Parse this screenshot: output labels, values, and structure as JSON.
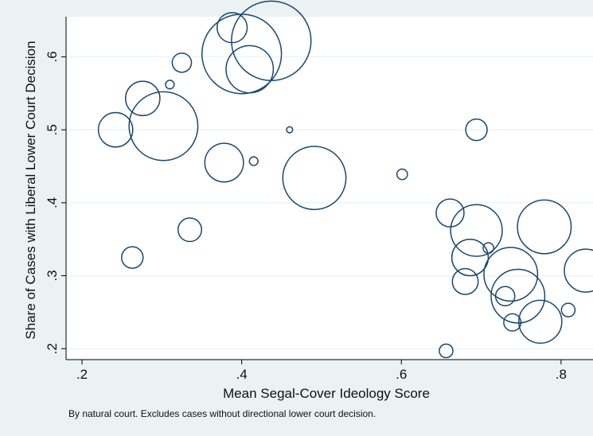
{
  "chart_data": {
    "type": "scatter",
    "title": "",
    "xlabel": "Mean Segal-Cover Ideology Score",
    "ylabel": "Share of Cases with Liberal Lower Court Decision",
    "note": "By natural court. Excludes cases without directional lower court decision.",
    "xlim": [
      0.18,
      0.84
    ],
    "ylim": [
      0.185,
      0.655
    ],
    "x_ticks": [
      0.2,
      0.4,
      0.6,
      0.8
    ],
    "x_tick_labels": [
      ".2",
      ".4",
      ".6",
      ".8"
    ],
    "y_ticks": [
      0.2,
      0.3,
      0.4,
      0.5,
      0.6
    ],
    "y_tick_labels": [
      ".2",
      ".3",
      ".4",
      ".5",
      ".6"
    ],
    "grid": true,
    "marker": "hollow circle, size proportional to weight",
    "colors": {
      "marker": "#1a476f",
      "grid": "#eaf2f3",
      "plot_bg": "#ffffff",
      "page_bg": "#eaf2f3",
      "axis": "#000000"
    },
    "points": [
      {
        "x": 0.242,
        "y": 0.5,
        "w": 64
      },
      {
        "x": 0.263,
        "y": 0.325,
        "w": 25
      },
      {
        "x": 0.276,
        "y": 0.543,
        "w": 64
      },
      {
        "x": 0.302,
        "y": 0.505,
        "w": 256
      },
      {
        "x": 0.31,
        "y": 0.562,
        "w": 4
      },
      {
        "x": 0.325,
        "y": 0.592,
        "w": 20
      },
      {
        "x": 0.335,
        "y": 0.363,
        "w": 30
      },
      {
        "x": 0.378,
        "y": 0.455,
        "w": 81
      },
      {
        "x": 0.388,
        "y": 0.64,
        "w": 49
      },
      {
        "x": 0.4,
        "y": 0.604,
        "w": 342
      },
      {
        "x": 0.41,
        "y": 0.583,
        "w": 121
      },
      {
        "x": 0.415,
        "y": 0.457,
        "w": 4
      },
      {
        "x": 0.437,
        "y": 0.622,
        "w": 342
      },
      {
        "x": 0.46,
        "y": 0.5,
        "w": 2
      },
      {
        "x": 0.491,
        "y": 0.434,
        "w": 216
      },
      {
        "x": 0.601,
        "y": 0.439,
        "w": 6
      },
      {
        "x": 0.656,
        "y": 0.197,
        "w": 10
      },
      {
        "x": 0.661,
        "y": 0.386,
        "w": 42
      },
      {
        "x": 0.68,
        "y": 0.292,
        "w": 36
      },
      {
        "x": 0.686,
        "y": 0.325,
        "w": 72
      },
      {
        "x": 0.694,
        "y": 0.5,
        "w": 25
      },
      {
        "x": 0.694,
        "y": 0.362,
        "w": 144
      },
      {
        "x": 0.709,
        "y": 0.338,
        "w": 6
      },
      {
        "x": 0.73,
        "y": 0.272,
        "w": 20
      },
      {
        "x": 0.737,
        "y": 0.302,
        "w": 156
      },
      {
        "x": 0.739,
        "y": 0.236,
        "w": 16
      },
      {
        "x": 0.746,
        "y": 0.272,
        "w": 156
      },
      {
        "x": 0.774,
        "y": 0.237,
        "w": 100
      },
      {
        "x": 0.779,
        "y": 0.367,
        "w": 156
      },
      {
        "x": 0.809,
        "y": 0.253,
        "w": 10
      },
      {
        "x": 0.831,
        "y": 0.307,
        "w": 100
      }
    ]
  }
}
